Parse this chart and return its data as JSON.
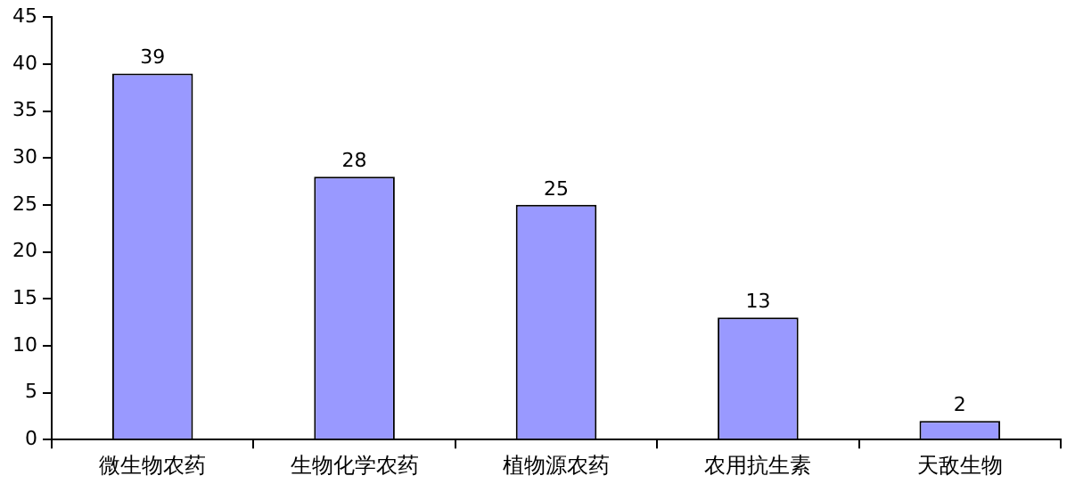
{
  "chart_data": {
    "type": "bar",
    "categories": [
      "微生物农药",
      "生物化学农药",
      "植物源农药",
      "农用抗生素",
      "天敌生物"
    ],
    "values": [
      39,
      28,
      25,
      13,
      2
    ],
    "color": "#9999ff",
    "ylim": [
      0,
      45
    ],
    "yticks": [
      0,
      5,
      10,
      15,
      20,
      25,
      30,
      35,
      40,
      45
    ],
    "grid": false,
    "legend": false,
    "data_labels": true
  }
}
